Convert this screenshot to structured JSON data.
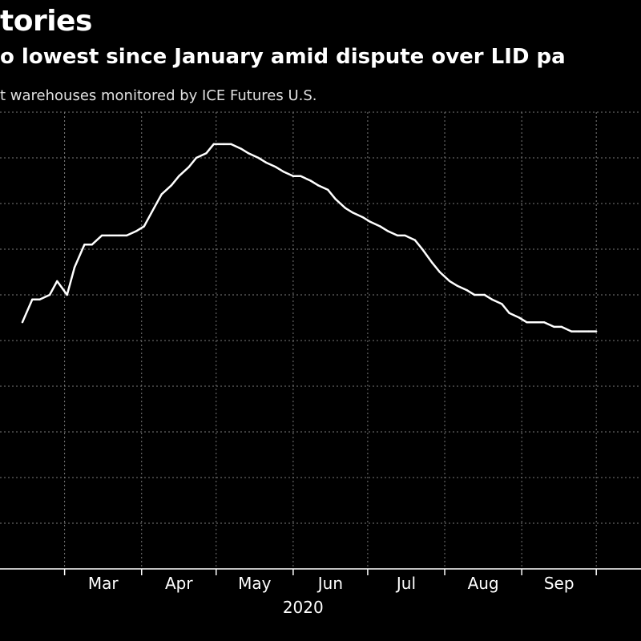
{
  "header": {
    "title": "tories",
    "subtitle": "o lowest since January amid dispute over LID pa",
    "description": "t warehouses monitored by ICE Futures U.S."
  },
  "colors": {
    "background": "#000000",
    "line": "#ffffff",
    "grid": "#7a7a7a",
    "text": "#ffffff"
  },
  "chart_data": {
    "type": "line",
    "title": "tories",
    "subtitle": "o lowest since January amid dispute over LID pa",
    "xlabel": "",
    "ylabel": "",
    "x_year_label": "2020",
    "x_tick_labels": [
      "Mar",
      "Apr",
      "May",
      "Jun",
      "Jul",
      "Aug",
      "Sep"
    ],
    "grid": true,
    "legend": "none",
    "y_axis_note": "y-axis tick labels are cropped out of the image; values below are relative position (0 = bottom of plot, 10 = top), estimated from the gridlines",
    "ylim": [
      0,
      10
    ],
    "series": [
      {
        "name": "",
        "x": [
          "2020-02-13",
          "2020-02-17",
          "2020-02-20",
          "2020-02-24",
          "2020-02-27",
          "2020-03-02",
          "2020-03-05",
          "2020-03-09",
          "2020-03-12",
          "2020-03-16",
          "2020-03-19",
          "2020-03-23",
          "2020-03-26",
          "2020-03-30",
          "2020-04-02",
          "2020-04-06",
          "2020-04-09",
          "2020-04-13",
          "2020-04-16",
          "2020-04-20",
          "2020-04-23",
          "2020-04-27",
          "2020-04-30",
          "2020-05-04",
          "2020-05-07",
          "2020-05-11",
          "2020-05-14",
          "2020-05-18",
          "2020-05-21",
          "2020-05-25",
          "2020-05-28",
          "2020-06-01",
          "2020-06-04",
          "2020-06-08",
          "2020-06-11",
          "2020-06-15",
          "2020-06-18",
          "2020-06-22",
          "2020-06-25",
          "2020-06-29",
          "2020-07-02",
          "2020-07-06",
          "2020-07-09",
          "2020-07-13",
          "2020-07-16",
          "2020-07-20",
          "2020-07-23",
          "2020-07-27",
          "2020-07-30",
          "2020-08-03",
          "2020-08-06",
          "2020-08-10",
          "2020-08-13",
          "2020-08-17",
          "2020-08-20",
          "2020-08-24",
          "2020-08-27",
          "2020-08-31",
          "2020-09-03",
          "2020-09-07",
          "2020-09-10",
          "2020-09-14",
          "2020-09-17",
          "2020-09-21",
          "2020-09-24",
          "2020-09-28",
          "2020-10-01"
        ],
        "y": [
          5.4,
          5.9,
          5.9,
          6.0,
          6.3,
          6.0,
          6.6,
          7.1,
          7.1,
          7.3,
          7.3,
          7.3,
          7.3,
          7.4,
          7.5,
          7.9,
          8.2,
          8.4,
          8.6,
          8.8,
          9.0,
          9.1,
          9.3,
          9.3,
          9.3,
          9.2,
          9.1,
          9.0,
          8.9,
          8.8,
          8.7,
          8.6,
          8.6,
          8.5,
          8.4,
          8.3,
          8.1,
          7.9,
          7.8,
          7.7,
          7.6,
          7.5,
          7.4,
          7.3,
          7.3,
          7.2,
          7.0,
          6.7,
          6.5,
          6.3,
          6.2,
          6.1,
          6.0,
          6.0,
          5.9,
          5.8,
          5.6,
          5.5,
          5.4,
          5.4,
          5.4,
          5.3,
          5.3,
          5.2,
          5.2,
          5.2,
          5.2
        ]
      }
    ]
  }
}
